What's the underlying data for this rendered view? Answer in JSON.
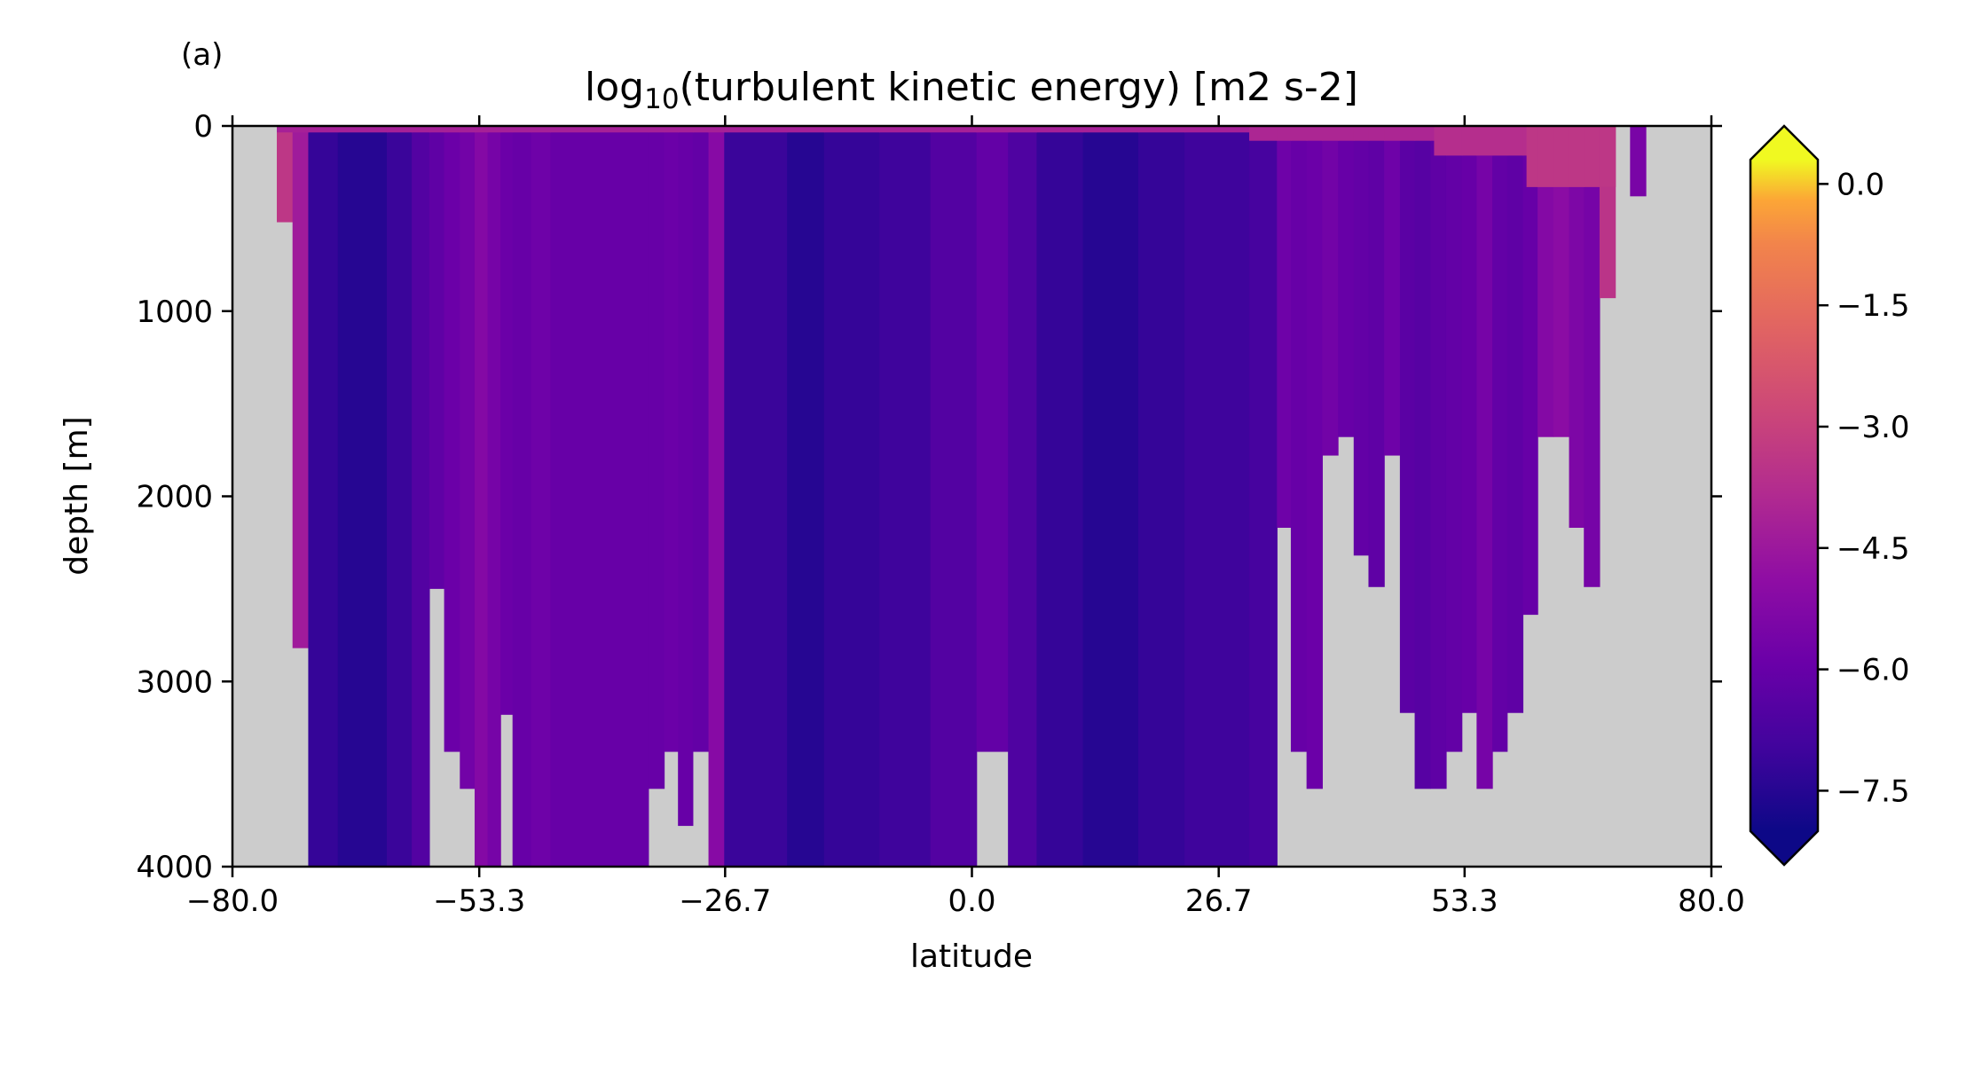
{
  "chart_data": {
    "type": "heatmap",
    "panel_label": "(a)",
    "title_main": "log",
    "title_sub": "10",
    "title_rest": "(turbulent kinetic energy) [m2 s-2]",
    "xlabel": "latitude",
    "ylabel": "depth [m]",
    "xlim": [
      -80,
      80
    ],
    "ylim": [
      4000,
      0
    ],
    "xticks": [
      "−80.0",
      "−53.3",
      "−26.7",
      "0.0",
      "26.7",
      "53.3",
      "80.0"
    ],
    "xtick_values": [
      -80.0,
      -53.3,
      -26.7,
      0.0,
      26.7,
      53.3,
      80.0
    ],
    "yticks": [
      "0",
      "1000",
      "2000",
      "3000",
      "4000"
    ],
    "ytick_values": [
      0,
      1000,
      2000,
      3000,
      4000
    ],
    "colorbar": {
      "colormap": "plasma",
      "range": [
        -8.0,
        0.3
      ],
      "extend": "both",
      "ticks": [
        "0.0",
        "−1.5",
        "−3.0",
        "−4.5",
        "−6.0",
        "−7.5"
      ],
      "tick_values": [
        0.0,
        -1.5,
        -3.0,
        -4.5,
        -6.0,
        -7.5
      ]
    },
    "mask_color": "#cccccc",
    "columns": [
      {
        "lat0": -75.2,
        "lat1": -73.5,
        "bottom": 520,
        "v": -3.4
      },
      {
        "lat0": -73.5,
        "lat1": -71.8,
        "bottom": 2820,
        "v": -4.4
      },
      {
        "lat0": -71.8,
        "lat1": -68.6,
        "bottom": 4000,
        "v": -7.2
      },
      {
        "lat0": -68.6,
        "lat1": -63.3,
        "bottom": 4000,
        "v": -7.5
      },
      {
        "lat0": -63.3,
        "lat1": -60.6,
        "bottom": 4000,
        "v": -7.1
      },
      {
        "lat0": -60.6,
        "lat1": -58.7,
        "bottom": 4000,
        "v": -6.5
      },
      {
        "lat0": -58.7,
        "lat1": -57.1,
        "bottom": 2500,
        "v": -6.2
      },
      {
        "lat0": -57.1,
        "lat1": -55.4,
        "bottom": 3380,
        "v": -5.9
      },
      {
        "lat0": -55.4,
        "lat1": -53.8,
        "bottom": 3580,
        "v": -5.7
      },
      {
        "lat0": -53.8,
        "lat1": -52.4,
        "bottom": 4000,
        "v": -5.2
      },
      {
        "lat0": -52.4,
        "lat1": -51.0,
        "bottom": 4000,
        "v": -5.6
      },
      {
        "lat0": -51.0,
        "lat1": -49.7,
        "bottom": 3180,
        "v": -5.9
      },
      {
        "lat0": -49.7,
        "lat1": -47.7,
        "bottom": 4000,
        "v": -6.0
      },
      {
        "lat0": -47.7,
        "lat1": -45.6,
        "bottom": 4000,
        "v": -5.8
      },
      {
        "lat0": -45.6,
        "lat1": -35.0,
        "bottom": 4000,
        "v": -6.0
      },
      {
        "lat0": -35.0,
        "lat1": -33.3,
        "bottom": 3580,
        "v": -6.0
      },
      {
        "lat0": -33.3,
        "lat1": -31.8,
        "bottom": 3380,
        "v": -5.9
      },
      {
        "lat0": -31.8,
        "lat1": -30.2,
        "bottom": 3780,
        "v": -6.0
      },
      {
        "lat0": -30.2,
        "lat1": -28.5,
        "bottom": 3380,
        "v": -6.1
      },
      {
        "lat0": -28.5,
        "lat1": -26.8,
        "bottom": 4000,
        "v": -5.1
      },
      {
        "lat0": -26.8,
        "lat1": -20.0,
        "bottom": 4000,
        "v": -7.1
      },
      {
        "lat0": -20.0,
        "lat1": -16.0,
        "bottom": 4000,
        "v": -7.5
      },
      {
        "lat0": -16.0,
        "lat1": -10.0,
        "bottom": 4000,
        "v": -7.2
      },
      {
        "lat0": -10.0,
        "lat1": -4.5,
        "bottom": 4000,
        "v": -7.0
      },
      {
        "lat0": -4.5,
        "lat1": 0.5,
        "bottom": 4000,
        "v": -6.5
      },
      {
        "lat0": 0.5,
        "lat1": 3.9,
        "bottom": 3380,
        "v": -6.1
      },
      {
        "lat0": 3.9,
        "lat1": 7.0,
        "bottom": 4000,
        "v": -6.6
      },
      {
        "lat0": 7.0,
        "lat1": 12.0,
        "bottom": 4000,
        "v": -7.2
      },
      {
        "lat0": 12.0,
        "lat1": 18.0,
        "bottom": 4000,
        "v": -7.5
      },
      {
        "lat0": 18.0,
        "lat1": 23.0,
        "bottom": 4000,
        "v": -7.2
      },
      {
        "lat0": 23.0,
        "lat1": 30.0,
        "bottom": 4000,
        "v": -7.0
      },
      {
        "lat0": 30.0,
        "lat1": 33.0,
        "bottom": 4000,
        "v": -6.8
      },
      {
        "lat0": 33.0,
        "lat1": 34.5,
        "bottom": 2170,
        "v": -5.8
      },
      {
        "lat0": 34.5,
        "lat1": 36.2,
        "bottom": 3380,
        "v": -6.0
      },
      {
        "lat0": 36.2,
        "lat1": 37.9,
        "bottom": 3580,
        "v": -5.9
      },
      {
        "lat0": 37.9,
        "lat1": 39.6,
        "bottom": 1780,
        "v": -5.7
      },
      {
        "lat0": 39.6,
        "lat1": 41.3,
        "bottom": 1680,
        "v": -6.0
      },
      {
        "lat0": 41.3,
        "lat1": 42.9,
        "bottom": 2320,
        "v": -6.1
      },
      {
        "lat0": 42.9,
        "lat1": 44.6,
        "bottom": 2490,
        "v": -6.2
      },
      {
        "lat0": 44.6,
        "lat1": 46.3,
        "bottom": 1780,
        "v": -5.8
      },
      {
        "lat0": 46.3,
        "lat1": 47.9,
        "bottom": 3170,
        "v": -6.3
      },
      {
        "lat0": 47.9,
        "lat1": 49.6,
        "bottom": 3580,
        "v": -6.4
      },
      {
        "lat0": 49.6,
        "lat1": 51.3,
        "bottom": 3580,
        "v": -6.2
      },
      {
        "lat0": 51.3,
        "lat1": 53.0,
        "bottom": 3380,
        "v": -6.1
      },
      {
        "lat0": 53.0,
        "lat1": 54.6,
        "bottom": 3170,
        "v": -6.0
      },
      {
        "lat0": 54.6,
        "lat1": 56.3,
        "bottom": 3580,
        "v": -5.6
      },
      {
        "lat0": 56.3,
        "lat1": 57.9,
        "bottom": 3380,
        "v": -6.1
      },
      {
        "lat0": 57.9,
        "lat1": 59.6,
        "bottom": 3170,
        "v": -6.2
      },
      {
        "lat0": 59.6,
        "lat1": 61.2,
        "bottom": 2640,
        "v": -6.0
      },
      {
        "lat0": 61.2,
        "lat1": 62.9,
        "bottom": 1680,
        "v": -5.2
      },
      {
        "lat0": 62.9,
        "lat1": 64.6,
        "bottom": 1680,
        "v": -5.0
      },
      {
        "lat0": 64.6,
        "lat1": 66.2,
        "bottom": 2170,
        "v": -5.4
      },
      {
        "lat0": 66.2,
        "lat1": 67.9,
        "bottom": 2490,
        "v": -5.6
      },
      {
        "lat0": 67.9,
        "lat1": 69.6,
        "bottom": 930,
        "v": -3.5
      },
      {
        "lat0": 69.6,
        "lat1": 71.2,
        "bottom": 0,
        "v": -3.0
      },
      {
        "lat0": 71.2,
        "lat1": 72.9,
        "bottom": 380,
        "v": -5.5
      }
    ],
    "surface_layer": [
      {
        "lat0": -75.2,
        "lat1": 30.0,
        "depth": 35,
        "v": -4.2
      },
      {
        "lat0": 30.0,
        "lat1": 50.0,
        "depth": 80,
        "v": -4.0
      },
      {
        "lat0": 50.0,
        "lat1": 60.0,
        "depth": 160,
        "v": -3.7
      },
      {
        "lat0": 60.0,
        "lat1": 69.6,
        "depth": 330,
        "v": -3.4
      }
    ]
  }
}
